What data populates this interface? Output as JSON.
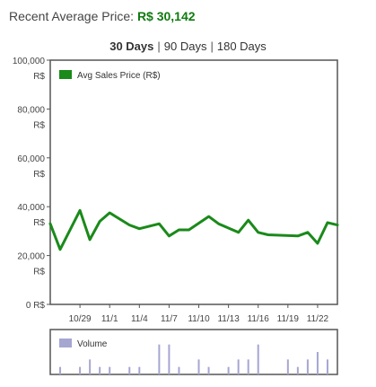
{
  "summary": {
    "label": "Recent Average Price:",
    "value": "R$ 30,142"
  },
  "ranges": [
    {
      "label": "30 Days",
      "active": true
    },
    {
      "label": "90 Days",
      "active": false
    },
    {
      "label": "180 Days",
      "active": false
    }
  ],
  "colors": {
    "line": "#1a8a1a",
    "legend_swatch": "#1a8a1a",
    "volume_bar": "#a6a6d2",
    "volume_swatch": "#a6a6d2",
    "frame": "#555555"
  },
  "chart_data": [
    {
      "type": "line",
      "title": "",
      "xlabel": "",
      "ylabel": "",
      "ylim": [
        0,
        100000
      ],
      "ytick_values": [
        0,
        20000,
        40000,
        60000,
        80000,
        100000
      ],
      "ytick_labels": [
        [
          "0 R$"
        ],
        [
          "20,000",
          "R$"
        ],
        [
          "40,000",
          "R$"
        ],
        [
          "60,000",
          "R$"
        ],
        [
          "80,000",
          "R$"
        ],
        [
          "100,000",
          "R$"
        ]
      ],
      "xlim": [
        "2023-10-26",
        "2023-11-24"
      ],
      "xtick_labels": [
        "10/29",
        "11/1",
        "11/4",
        "11/7",
        "11/10",
        "11/13",
        "11/16",
        "11/19",
        "11/22"
      ],
      "grid": false,
      "legend": "top-left",
      "series": [
        {
          "name": "Avg Sales Price (R$)",
          "x": [
            "2023-10-26",
            "2023-10-27",
            "2023-10-29",
            "2023-10-30",
            "2023-10-31",
            "2023-11-01",
            "2023-11-03",
            "2023-11-04",
            "2023-11-06",
            "2023-11-07",
            "2023-11-08",
            "2023-11-09",
            "2023-11-11",
            "2023-11-12",
            "2023-11-14",
            "2023-11-15",
            "2023-11-16",
            "2023-11-17",
            "2023-11-20",
            "2023-11-21",
            "2023-11-22",
            "2023-11-23",
            "2023-11-24"
          ],
          "y": [
            33000,
            22500,
            38500,
            26500,
            34000,
            37500,
            32500,
            31000,
            33000,
            28000,
            30500,
            30500,
            36000,
            33000,
            29500,
            34500,
            29500,
            28500,
            28000,
            29500,
            25000,
            33500,
            32500
          ]
        }
      ]
    },
    {
      "type": "bar",
      "title": "",
      "legend": "top-left",
      "series_name": "Volume",
      "x": [
        "2023-10-27",
        "2023-10-29",
        "2023-10-30",
        "2023-10-31",
        "2023-11-01",
        "2023-11-03",
        "2023-11-04",
        "2023-11-06",
        "2023-11-07",
        "2023-11-08",
        "2023-11-10",
        "2023-11-11",
        "2023-11-13",
        "2023-11-14",
        "2023-11-15",
        "2023-11-16",
        "2023-11-19",
        "2023-11-20",
        "2023-11-21",
        "2023-11-22",
        "2023-11-23"
      ],
      "values": [
        1,
        1,
        2,
        1,
        1,
        1,
        1,
        4,
        4,
        1,
        2,
        1,
        1,
        2,
        2,
        4,
        2,
        1,
        2,
        3,
        2
      ],
      "ylim": [
        0,
        6
      ]
    }
  ]
}
